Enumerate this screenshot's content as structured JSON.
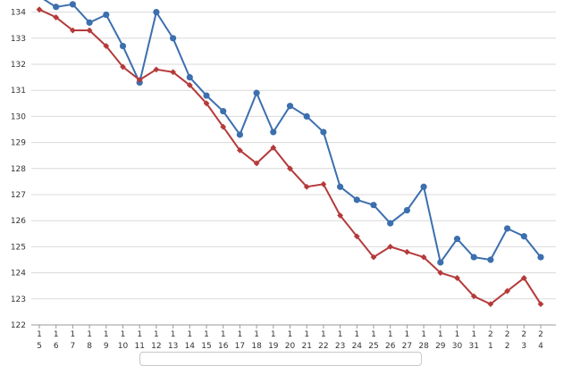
{
  "chart_data": {
    "type": "line",
    "categories": [
      [
        "1",
        "5"
      ],
      [
        "1",
        "6"
      ],
      [
        "1",
        "7"
      ],
      [
        "1",
        "8"
      ],
      [
        "1",
        "9"
      ],
      [
        "1",
        "10"
      ],
      [
        "1",
        "11"
      ],
      [
        "1",
        "12"
      ],
      [
        "1",
        "13"
      ],
      [
        "1",
        "14"
      ],
      [
        "1",
        "15"
      ],
      [
        "1",
        "16"
      ],
      [
        "1",
        "17"
      ],
      [
        "1",
        "18"
      ],
      [
        "1",
        "19"
      ],
      [
        "1",
        "20"
      ],
      [
        "1",
        "21"
      ],
      [
        "1",
        "22"
      ],
      [
        "1",
        "23"
      ],
      [
        "1",
        "24"
      ],
      [
        "1",
        "25"
      ],
      [
        "1",
        "26"
      ],
      [
        "1",
        "27"
      ],
      [
        "1",
        "28"
      ],
      [
        "1",
        "29"
      ],
      [
        "1",
        "30"
      ],
      [
        "1",
        "31"
      ],
      [
        "2",
        "1"
      ],
      [
        "2",
        "2"
      ],
      [
        "2",
        "3"
      ],
      [
        "2",
        "4"
      ]
    ],
    "ylim": [
      122,
      134
    ],
    "yticks": [
      "122",
      "123",
      "124",
      "125",
      "126",
      "127",
      "128",
      "129",
      "130",
      "131",
      "132",
      "133",
      "134"
    ],
    "grid": true,
    "series": [
      {
        "color": "#3c6fae",
        "marker": "circle",
        "values": [
          134.6,
          134.2,
          134.3,
          133.6,
          133.9,
          132.7,
          131.3,
          134.0,
          133.0,
          131.5,
          130.8,
          130.2,
          129.3,
          130.9,
          129.4,
          130.4,
          130.0,
          129.4,
          127.3,
          126.8,
          126.6,
          125.9,
          126.4,
          127.3,
          124.4,
          125.3,
          124.6,
          124.5,
          125.7,
          125.4,
          124.6
        ]
      },
      {
        "color": "#b53a3a",
        "marker": "diamond",
        "values": [
          134.1,
          133.8,
          133.3,
          133.3,
          132.7,
          131.9,
          131.4,
          131.8,
          131.7,
          131.2,
          130.5,
          129.6,
          128.7,
          128.2,
          128.8,
          128.0,
          127.3,
          127.4,
          126.2,
          125.4,
          124.6,
          125.0,
          124.8,
          124.6,
          124.0,
          123.8,
          123.1,
          122.8,
          123.3,
          123.8,
          122.8
        ]
      }
    ]
  }
}
